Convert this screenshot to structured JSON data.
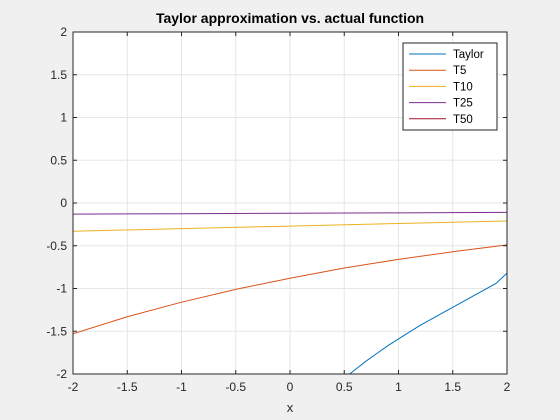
{
  "chart_data": {
    "type": "line",
    "title": "Taylor approximation vs. actual function",
    "xlabel": "x",
    "ylabel": "",
    "xlim": [
      -2,
      2
    ],
    "ylim": [
      -2,
      2
    ],
    "xticks": [
      -2,
      -1.5,
      -1,
      -0.5,
      0,
      0.5,
      1,
      1.5,
      2
    ],
    "yticks": [
      -2,
      -1.5,
      -1,
      -0.5,
      0,
      0.5,
      1,
      1.5,
      2
    ],
    "xtick_labels": [
      "-2",
      "-1.5",
      "-1",
      "-0.5",
      "0",
      "0.5",
      "1",
      "1.5",
      "2"
    ],
    "ytick_labels": [
      "-2",
      "-1.5",
      "-1",
      "-0.5",
      "0",
      "0.5",
      "1",
      "1.5",
      "2"
    ],
    "grid": true,
    "legend_position": "top-right",
    "series": [
      {
        "name": "Taylor",
        "color": "#0072bd",
        "x": [
          0.55,
          0.6,
          0.7,
          0.8,
          0.9,
          1.0,
          1.1,
          1.2,
          1.3,
          1.4,
          1.5,
          1.6,
          1.7,
          1.8,
          1.9,
          2.0
        ],
        "y": [
          -2.0,
          -1.95,
          -1.85,
          -1.76,
          -1.67,
          -1.59,
          -1.51,
          -1.43,
          -1.36,
          -1.29,
          -1.22,
          -1.15,
          -1.08,
          -1.01,
          -0.94,
          -0.82
        ]
      },
      {
        "name": "T5",
        "color": "#d95319",
        "x": [
          -2,
          -1.5,
          -1,
          -0.5,
          0,
          0.5,
          1,
          1.5,
          2
        ],
        "y": [
          -1.53,
          -1.33,
          -1.16,
          -1.01,
          -0.88,
          -0.76,
          -0.66,
          -0.57,
          -0.49
        ]
      },
      {
        "name": "T10",
        "color": "#edb120",
        "x": [
          -2,
          -1,
          0,
          1,
          2
        ],
        "y": [
          -0.33,
          -0.3,
          -0.27,
          -0.24,
          -0.21
        ]
      },
      {
        "name": "T25",
        "color": "#7e2f8e",
        "x": [
          -2,
          -1,
          0,
          1,
          2
        ],
        "y": [
          -0.13,
          -0.125,
          -0.12,
          -0.115,
          -0.11
        ]
      },
      {
        "name": "T50",
        "color": "#a2142f",
        "x": [],
        "y": []
      }
    ]
  }
}
